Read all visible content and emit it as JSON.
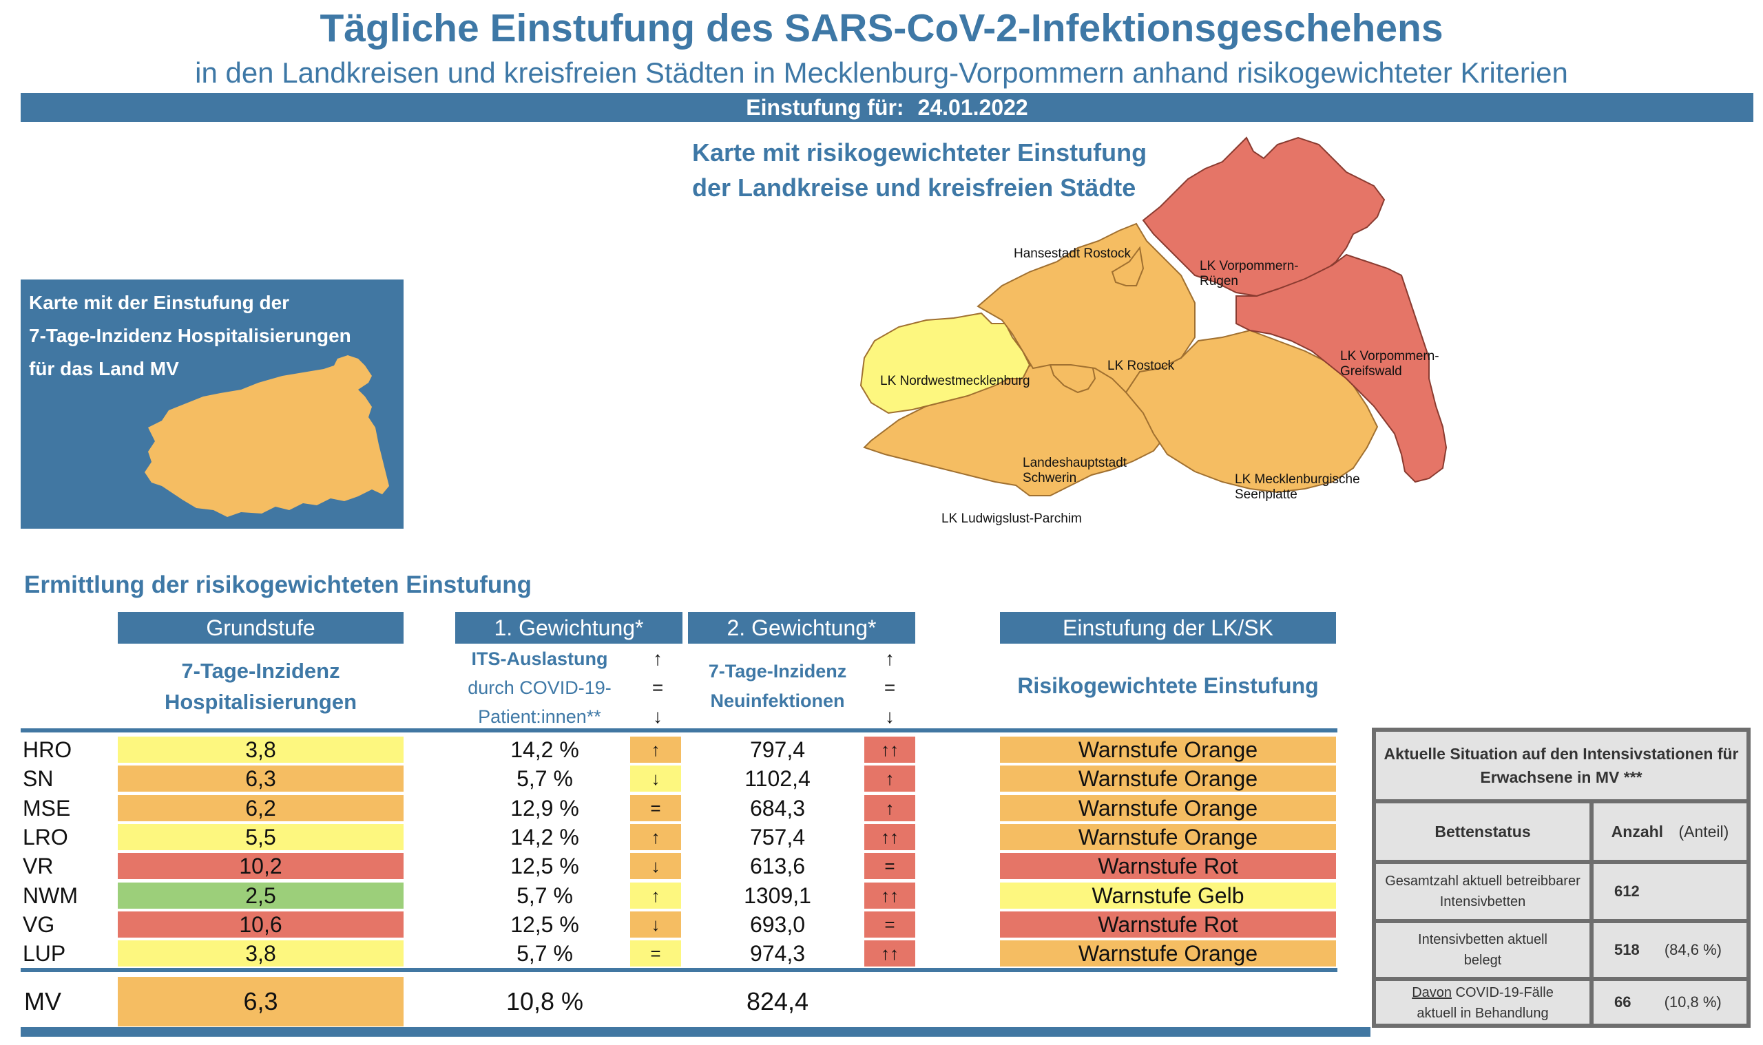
{
  "header": {
    "title": "Tägliche Einstufung des SARS-CoV-2-Infektionsgeschehens",
    "subtitle": "in den Landkreisen und kreisfreien Städten in Mecklenburg-Vorpommern anhand risikogewichteter Kriterien",
    "date_label": "Einstufung für:",
    "date_value": "24.01.2022"
  },
  "map": {
    "title_line1": "Karte mit risikogewichteter Einstufung",
    "title_line2": "der Landkreise und kreisfreien Städte",
    "regions": {
      "hro": "Hansestadt Rostock",
      "vr1": "LK Vorpommern-",
      "vr2": "Rügen",
      "vg1": "LK Vorpommern-",
      "vg2": "Greifswald",
      "nwm": "LK Nordwestmecklenburg",
      "lro": "LK Rostock",
      "sn1": "Landeshauptstadt",
      "sn2": "Schwerin",
      "mse1": "LK Mecklenburgische",
      "mse2": "Seenplatte",
      "lup": "LK Ludwigslust-Parchim"
    },
    "colors": {
      "yellow": "#fdf77f",
      "orange": "#f5bd62",
      "red": "#e57567",
      "blue": "#4177a2"
    }
  },
  "hosp_box": {
    "line1": "Karte mit der Einstufung der",
    "line2": "7-Tage-Inzidenz Hospitalisierungen",
    "line3": "für das Land MV"
  },
  "section_title": "Ermittlung der risikogewichteten Einstufung",
  "columns": {
    "grundstufe": "Grundstufe",
    "grundstufe_sub1": "7-Tage-Inzidenz",
    "grundstufe_sub2": "Hospitalisierungen",
    "gew1": "1. Gewichtung*",
    "gew1_sub1": "ITS-Auslastung",
    "gew1_sub2": "durch COVID-19-",
    "gew1_sub3": "Patient:innen**",
    "gew2": "2. Gewichtung*",
    "gew2_sub1": "7-Tage-Inzidenz",
    "gew2_sub2": "Neuinfektionen",
    "einstufung": "Einstufung der LK/SK",
    "einstufung_sub": "Risikogewichtete Einstufung",
    "legend_up": "↑",
    "legend_eq": "=",
    "legend_down": "↓"
  },
  "rows": [
    {
      "code": "HRO",
      "hosp": "3,8",
      "hosp_color": "yellow",
      "its": "14,2 %",
      "its_trend": "↑",
      "its_color": "orange",
      "inz": "797,4",
      "inz_trend": "↑↑",
      "inz_color": "red",
      "stufe": "Warnstufe Orange",
      "stufe_color": "orange"
    },
    {
      "code": "SN",
      "hosp": "6,3",
      "hosp_color": "orange",
      "its": "5,7 %",
      "its_trend": "↓",
      "its_color": "yellow",
      "inz": "1102,4",
      "inz_trend": "↑",
      "inz_color": "red",
      "stufe": "Warnstufe Orange",
      "stufe_color": "orange"
    },
    {
      "code": "MSE",
      "hosp": "6,2",
      "hosp_color": "orange",
      "its": "12,9 %",
      "its_trend": "=",
      "its_color": "orange",
      "inz": "684,3",
      "inz_trend": "↑",
      "inz_color": "red",
      "stufe": "Warnstufe Orange",
      "stufe_color": "orange"
    },
    {
      "code": "LRO",
      "hosp": "5,5",
      "hosp_color": "yellow",
      "its": "14,2 %",
      "its_trend": "↑",
      "its_color": "orange",
      "inz": "757,4",
      "inz_trend": "↑↑",
      "inz_color": "red",
      "stufe": "Warnstufe Orange",
      "stufe_color": "orange"
    },
    {
      "code": "VR",
      "hosp": "10,2",
      "hosp_color": "red",
      "its": "12,5 %",
      "its_trend": "↓",
      "its_color": "orange",
      "inz": "613,6",
      "inz_trend": "=",
      "inz_color": "red",
      "stufe": "Warnstufe Rot",
      "stufe_color": "red"
    },
    {
      "code": "NWM",
      "hosp": "2,5",
      "hosp_color": "green",
      "its": "5,7 %",
      "its_trend": "↑",
      "its_color": "yellow",
      "inz": "1309,1",
      "inz_trend": "↑↑",
      "inz_color": "red",
      "stufe": "Warnstufe Gelb",
      "stufe_color": "yellow"
    },
    {
      "code": "VG",
      "hosp": "10,6",
      "hosp_color": "red",
      "its": "12,5 %",
      "its_trend": "↓",
      "its_color": "orange",
      "inz": "693,0",
      "inz_trend": "=",
      "inz_color": "red",
      "stufe": "Warnstufe Rot",
      "stufe_color": "red"
    },
    {
      "code": "LUP",
      "hosp": "3,8",
      "hosp_color": "yellow",
      "its": "5,7 %",
      "its_trend": "=",
      "its_color": "yellow",
      "inz": "974,3",
      "inz_trend": "↑↑",
      "inz_color": "red",
      "stufe": "Warnstufe Orange",
      "stufe_color": "orange"
    }
  ],
  "total": {
    "code": "MV",
    "hosp": "6,3",
    "hosp_color": "orange",
    "its": "10,8 %",
    "inz": "824,4"
  },
  "icu": {
    "title": "Aktuelle Situation auf den Intensivstationen für Erwachsene in MV ***",
    "col_status": "Bettenstatus",
    "col_count": "Anzahl",
    "col_share": "(Anteil)",
    "r1_label": "Gesamtzahl aktuell betreibbarer Intensivbetten",
    "r1_count": "612",
    "r1_share": "",
    "r2_label": "Intensivbetten aktuell belegt",
    "r2_count": "518",
    "r2_share": "(84,6 %)",
    "r3_label_u": "Davon",
    "r3_label": " COVID-19-Fälle aktuell in Behandlung",
    "r3_count": "66",
    "r3_share": "(10,8 %)"
  }
}
